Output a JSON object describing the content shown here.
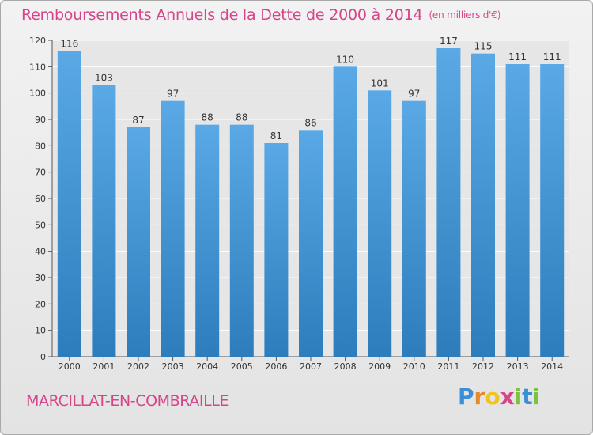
{
  "chart_data": {
    "type": "bar",
    "title": "Remboursements Annuels de la Dette de 2000 à 2014",
    "unit": "(en milliers d'€)",
    "categories": [
      "2000",
      "2001",
      "2002",
      "2003",
      "2004",
      "2005",
      "2006",
      "2007",
      "2008",
      "2009",
      "2010",
      "2011",
      "2012",
      "2013",
      "2014"
    ],
    "values": [
      116,
      103,
      87,
      97,
      88,
      88,
      81,
      86,
      110,
      101,
      97,
      117,
      115,
      111,
      111
    ],
    "ylim": [
      0,
      120
    ],
    "yticks": [
      0,
      10,
      20,
      30,
      40,
      50,
      60,
      70,
      80,
      90,
      100,
      110,
      120
    ],
    "xlabel": "",
    "ylabel": "",
    "grid": true,
    "bar_color_top": "#5aa9e6",
    "bar_color_bottom": "#2d7dbc"
  },
  "commune": "MARCILLAT-EN-COMBRAILLE",
  "logo": {
    "letters": [
      "P",
      "r",
      "o",
      "x",
      "i",
      "t",
      "i"
    ],
    "colors": [
      "#3a8fd6",
      "#e8882a",
      "#f0c419",
      "#d6448a",
      "#7cc242",
      "#3a8fd6",
      "#7cc242"
    ]
  },
  "colors": {
    "accent": "#d6448a",
    "background": "#ececec"
  }
}
